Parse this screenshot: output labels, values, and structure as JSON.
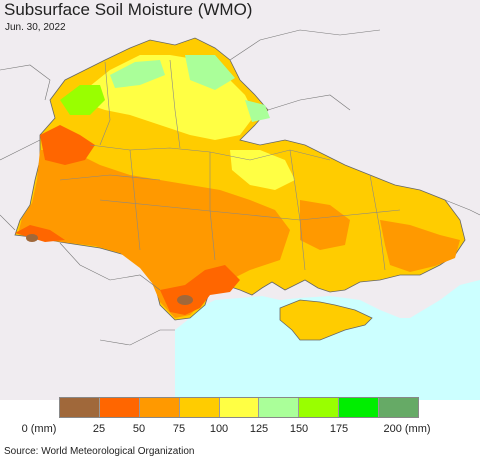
{
  "title": "Subsurface Soil Moisture (WMO)",
  "date": "Jun. 30, 2022",
  "legend": {
    "colors": [
      "#a0683a",
      "#ff6600",
      "#ff9900",
      "#ffcc00",
      "#ffff44",
      "#aaff99",
      "#99ff00",
      "#00ee00",
      "#66aa66"
    ],
    "ticks": [
      "0 (mm)",
      "25",
      "50",
      "75",
      "100",
      "125",
      "150",
      "175",
      "200 (mm)"
    ]
  },
  "source": "Source: World Meteorological Organization",
  "colors": {
    "sea": "#ccffff",
    "land_outside": "#f0ecf0",
    "border": "#888888"
  }
}
